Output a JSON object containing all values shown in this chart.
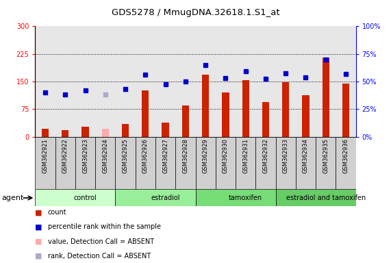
{
  "title": "GDS5278 / MmugDNA.32618.1.S1_at",
  "samples": [
    "GSM362921",
    "GSM362922",
    "GSM362923",
    "GSM362924",
    "GSM362925",
    "GSM362926",
    "GSM362927",
    "GSM362928",
    "GSM362929",
    "GSM362930",
    "GSM362931",
    "GSM362932",
    "GSM362933",
    "GSM362934",
    "GSM362935",
    "GSM362936"
  ],
  "count_values": [
    22,
    18,
    28,
    22,
    35,
    125,
    38,
    85,
    168,
    120,
    153,
    95,
    148,
    112,
    215,
    145
  ],
  "count_absent": [
    false,
    false,
    false,
    true,
    false,
    false,
    false,
    false,
    false,
    false,
    false,
    false,
    false,
    false,
    false,
    false
  ],
  "rank_values": [
    120,
    115,
    125,
    115,
    130,
    168,
    143,
    150,
    195,
    160,
    178,
    158,
    172,
    162,
    210,
    170
  ],
  "rank_absent": [
    false,
    false,
    false,
    true,
    false,
    false,
    false,
    false,
    false,
    false,
    false,
    false,
    false,
    false,
    false,
    false
  ],
  "groups": [
    {
      "label": "control",
      "start": 0,
      "end": 4,
      "color": "#ccffcc"
    },
    {
      "label": "estradiol",
      "start": 4,
      "end": 8,
      "color": "#99ee99"
    },
    {
      "label": "tamoxifen",
      "start": 8,
      "end": 12,
      "color": "#77dd77"
    },
    {
      "label": "estradiol and tamoxifen",
      "start": 12,
      "end": 16,
      "color": "#66cc66"
    }
  ],
  "bar_color_present": "#cc2200",
  "bar_color_absent": "#ffaaaa",
  "dot_color_present": "#0000cc",
  "dot_color_absent": "#aaaacc",
  "ylim_left": [
    0,
    300
  ],
  "ylim_right": [
    0,
    100
  ],
  "yticks_left": [
    0,
    75,
    150,
    225,
    300
  ],
  "ytick_labels_left": [
    "0",
    "75",
    "150",
    "225",
    "300"
  ],
  "yticks_right": [
    0,
    25,
    50,
    75,
    100
  ],
  "ytick_labels_right": [
    "0%",
    "25%",
    "50%",
    "75%",
    "100%"
  ],
  "hline_values": [
    75,
    150,
    225
  ],
  "cell_color": "#d0d0d0",
  "legend_items": [
    {
      "color": "#cc2200",
      "label": "count"
    },
    {
      "color": "#0000cc",
      "label": "percentile rank within the sample"
    },
    {
      "color": "#ffaaaa",
      "label": "value, Detection Call = ABSENT"
    },
    {
      "color": "#aaaacc",
      "label": "rank, Detection Call = ABSENT"
    }
  ]
}
